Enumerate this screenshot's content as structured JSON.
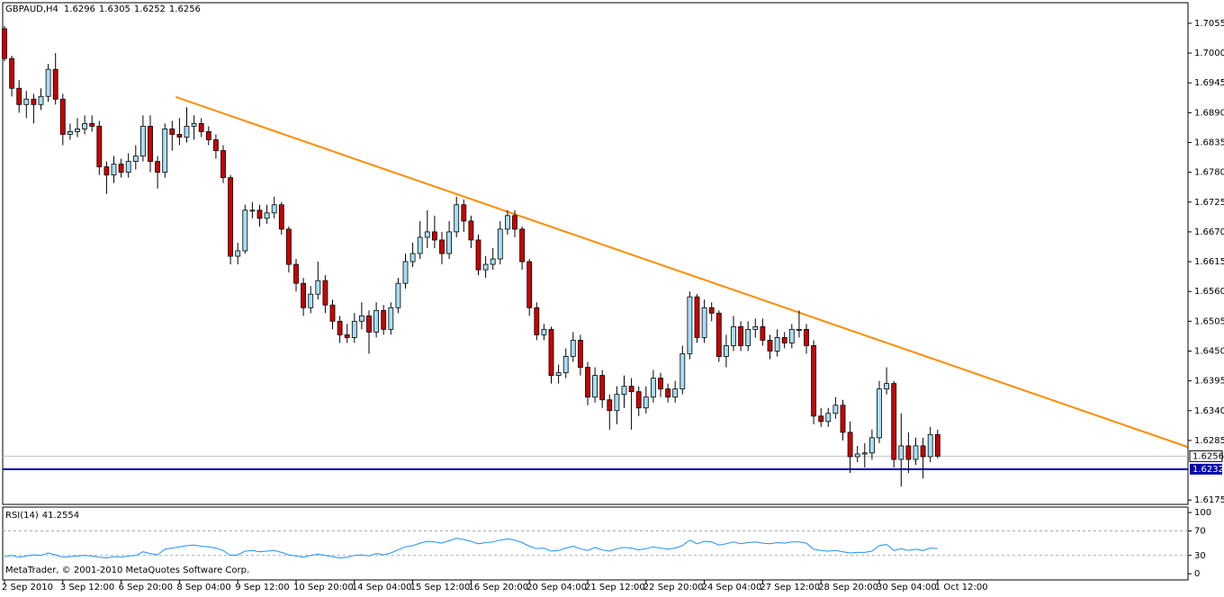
{
  "chart_data": {
    "type": "candlestick",
    "symbol": "GBPAUD,H4",
    "indicator_name": "RSI(14)",
    "copyright": "MetaTrader, © 2001-2010 MetaQuotes Software Corp.",
    "categories": [
      "2 Sep 2010",
      null,
      null,
      null,
      null,
      null,
      null,
      null,
      "3 Sep 12:00",
      null,
      null,
      null,
      null,
      null,
      null,
      null,
      "6 Sep 20:00",
      null,
      null,
      null,
      null,
      null,
      null,
      null,
      "8 Sep 04:00",
      null,
      null,
      null,
      null,
      null,
      null,
      null,
      "9 Sep 12:00",
      null,
      null,
      null,
      null,
      null,
      null,
      null,
      "10 Sep 20:00",
      null,
      null,
      null,
      null,
      null,
      null,
      null,
      "14 Sep 04:00",
      null,
      null,
      null,
      null,
      null,
      null,
      null,
      "15 Sep 12:00",
      null,
      null,
      null,
      null,
      null,
      null,
      null,
      "16 Sep 20:00",
      null,
      null,
      null,
      null,
      null,
      null,
      null,
      "20 Sep 04:00",
      null,
      null,
      null,
      null,
      null,
      null,
      null,
      "21 Sep 12:00",
      null,
      null,
      null,
      null,
      null,
      null,
      null,
      "22 Sep 20:00",
      null,
      null,
      null,
      null,
      null,
      null,
      null,
      "24 Sep 04:00",
      null,
      null,
      null,
      null,
      null,
      null,
      null,
      "27 Sep 12:00",
      null,
      null,
      null,
      null,
      null,
      null,
      null,
      "28 Sep 20:00",
      null,
      null,
      null,
      null,
      null,
      null,
      null,
      "30 Sep 04:00",
      null,
      null,
      null,
      null,
      null,
      null,
      null,
      "1 Oct 12:00"
    ],
    "ohlc": [
      [
        1.7045,
        1.705,
        1.6985,
        1.699
      ],
      [
        1.699,
        1.6995,
        1.692,
        1.6935
      ],
      [
        1.6935,
        1.695,
        1.689,
        1.6905
      ],
      [
        1.6905,
        1.693,
        1.688,
        1.6915
      ],
      [
        1.6915,
        1.6925,
        1.687,
        1.6905
      ],
      [
        1.6905,
        1.6935,
        1.6895,
        1.692
      ],
      [
        1.692,
        1.698,
        1.691,
        1.697
      ],
      [
        1.697,
        1.7,
        1.6905,
        1.6915
      ],
      [
        1.6915,
        1.6925,
        1.683,
        1.685
      ],
      [
        1.685,
        1.687,
        1.684,
        1.6855
      ],
      [
        1.6855,
        1.688,
        1.6845,
        1.686
      ],
      [
        1.686,
        1.6885,
        1.685,
        1.687
      ],
      [
        1.687,
        1.6885,
        1.6855,
        1.6865
      ],
      [
        1.6865,
        1.6875,
        1.6775,
        1.679
      ],
      [
        1.679,
        1.68,
        1.674,
        1.6775
      ],
      [
        1.6775,
        1.681,
        1.676,
        1.6795
      ],
      [
        1.6795,
        1.6805,
        1.677,
        1.678
      ],
      [
        1.678,
        1.6815,
        1.677,
        1.68
      ],
      [
        1.68,
        1.683,
        1.6785,
        1.681
      ],
      [
        1.681,
        1.6885,
        1.68,
        1.6865
      ],
      [
        1.6865,
        1.6885,
        1.678,
        1.68
      ],
      [
        1.68,
        1.681,
        1.675,
        1.678
      ],
      [
        1.678,
        1.687,
        1.677,
        1.686
      ],
      [
        1.686,
        1.6875,
        1.682,
        1.685
      ],
      [
        1.685,
        1.688,
        1.683,
        1.6845
      ],
      [
        1.6845,
        1.69,
        1.6835,
        1.6865
      ],
      [
        1.6865,
        1.6885,
        1.684,
        1.687
      ],
      [
        1.687,
        1.688,
        1.6845,
        1.6855
      ],
      [
        1.6855,
        1.6865,
        1.683,
        1.684
      ],
      [
        1.684,
        1.685,
        1.6805,
        1.682
      ],
      [
        1.682,
        1.683,
        1.676,
        1.677
      ],
      [
        1.677,
        1.6775,
        1.661,
        1.6625
      ],
      [
        1.6625,
        1.665,
        1.661,
        1.6635
      ],
      [
        1.6635,
        1.672,
        1.663,
        1.671
      ],
      [
        1.671,
        1.6725,
        1.6695,
        1.671
      ],
      [
        1.671,
        1.672,
        1.668,
        1.6695
      ],
      [
        1.6695,
        1.672,
        1.6685,
        1.6705
      ],
      [
        1.6705,
        1.6735,
        1.6695,
        1.672
      ],
      [
        1.672,
        1.6725,
        1.6665,
        1.6675
      ],
      [
        1.6675,
        1.668,
        1.6595,
        1.661
      ],
      [
        1.661,
        1.662,
        1.656,
        1.6575
      ],
      [
        1.6575,
        1.6585,
        1.6515,
        1.653
      ],
      [
        1.653,
        1.657,
        1.652,
        1.6555
      ],
      [
        1.6555,
        1.6615,
        1.6545,
        1.658
      ],
      [
        1.658,
        1.659,
        1.652,
        1.6535
      ],
      [
        1.6535,
        1.6545,
        1.649,
        1.6505
      ],
      [
        1.6505,
        1.6515,
        1.6465,
        1.648
      ],
      [
        1.648,
        1.65,
        1.6465,
        1.6475
      ],
      [
        1.6475,
        1.652,
        1.6465,
        1.6505
      ],
      [
        1.6505,
        1.654,
        1.649,
        1.6515
      ],
      [
        1.6515,
        1.6525,
        1.6445,
        1.6485
      ],
      [
        1.6485,
        1.654,
        1.6475,
        1.6525
      ],
      [
        1.6525,
        1.6535,
        1.648,
        1.649
      ],
      [
        1.649,
        1.654,
        1.648,
        1.653
      ],
      [
        1.653,
        1.6585,
        1.652,
        1.6575
      ],
      [
        1.6575,
        1.663,
        1.6565,
        1.6615
      ],
      [
        1.6615,
        1.665,
        1.6605,
        1.663
      ],
      [
        1.663,
        1.669,
        1.662,
        1.666
      ],
      [
        1.666,
        1.671,
        1.664,
        1.667
      ],
      [
        1.667,
        1.67,
        1.664,
        1.6655
      ],
      [
        1.6655,
        1.667,
        1.661,
        1.663
      ],
      [
        1.663,
        1.669,
        1.662,
        1.667
      ],
      [
        1.667,
        1.6735,
        1.666,
        1.672
      ],
      [
        1.672,
        1.673,
        1.667,
        1.669
      ],
      [
        1.669,
        1.67,
        1.664,
        1.6655
      ],
      [
        1.6655,
        1.6665,
        1.659,
        1.66
      ],
      [
        1.66,
        1.6625,
        1.6585,
        1.661
      ],
      [
        1.661,
        1.664,
        1.66,
        1.662
      ],
      [
        1.662,
        1.669,
        1.661,
        1.6675
      ],
      [
        1.6675,
        1.671,
        1.6665,
        1.67
      ],
      [
        1.67,
        1.671,
        1.666,
        1.6675
      ],
      [
        1.6675,
        1.668,
        1.66,
        1.6615
      ],
      [
        1.6615,
        1.662,
        1.6515,
        1.653
      ],
      [
        1.653,
        1.654,
        1.647,
        1.648
      ],
      [
        1.648,
        1.65,
        1.647,
        1.649
      ],
      [
        1.649,
        1.6495,
        1.639,
        1.6405
      ],
      [
        1.6405,
        1.6425,
        1.639,
        1.641
      ],
      [
        1.641,
        1.6455,
        1.64,
        1.644
      ],
      [
        1.644,
        1.6485,
        1.643,
        1.647
      ],
      [
        1.647,
        1.648,
        1.6405,
        1.642
      ],
      [
        1.642,
        1.643,
        1.635,
        1.6365
      ],
      [
        1.6365,
        1.642,
        1.6355,
        1.6405
      ],
      [
        1.6405,
        1.6415,
        1.6345,
        1.636
      ],
      [
        1.636,
        1.637,
        1.6305,
        1.634
      ],
      [
        1.634,
        1.6385,
        1.6315,
        1.637
      ],
      [
        1.637,
        1.6405,
        1.6345,
        1.6385
      ],
      [
        1.6385,
        1.64,
        1.6305,
        1.6375
      ],
      [
        1.6375,
        1.6385,
        1.633,
        1.6345
      ],
      [
        1.6345,
        1.6385,
        1.6335,
        1.6365
      ],
      [
        1.6365,
        1.6415,
        1.6355,
        1.64
      ],
      [
        1.64,
        1.641,
        1.6365,
        1.638
      ],
      [
        1.638,
        1.639,
        1.6355,
        1.6365
      ],
      [
        1.6365,
        1.6395,
        1.6355,
        1.638
      ],
      [
        1.638,
        1.646,
        1.637,
        1.6445
      ],
      [
        1.6445,
        1.656,
        1.6435,
        1.655
      ],
      [
        1.655,
        1.6555,
        1.6465,
        1.6475
      ],
      [
        1.6475,
        1.6545,
        1.6465,
        1.653
      ],
      [
        1.653,
        1.654,
        1.6505,
        1.652
      ],
      [
        1.652,
        1.6525,
        1.643,
        1.644
      ],
      [
        1.644,
        1.648,
        1.642,
        1.646
      ],
      [
        1.646,
        1.6515,
        1.645,
        1.6495
      ],
      [
        1.6495,
        1.6505,
        1.645,
        1.646
      ],
      [
        1.646,
        1.6505,
        1.645,
        1.649
      ],
      [
        1.649,
        1.651,
        1.6475,
        1.6495
      ],
      [
        1.6495,
        1.651,
        1.646,
        1.647
      ],
      [
        1.647,
        1.648,
        1.6435,
        1.645
      ],
      [
        1.645,
        1.649,
        1.644,
        1.6475
      ],
      [
        1.6475,
        1.6485,
        1.6455,
        1.6465
      ],
      [
        1.6465,
        1.65,
        1.6455,
        1.649
      ],
      [
        1.649,
        1.6525,
        1.6475,
        1.649
      ],
      [
        1.649,
        1.65,
        1.6445,
        1.646
      ],
      [
        1.646,
        1.647,
        1.6315,
        1.633
      ],
      [
        1.633,
        1.6345,
        1.631,
        1.632
      ],
      [
        1.632,
        1.6345,
        1.631,
        1.6335
      ],
      [
        1.6335,
        1.6365,
        1.6325,
        1.635
      ],
      [
        1.635,
        1.636,
        1.6285,
        1.63
      ],
      [
        1.63,
        1.632,
        1.6225,
        1.6255
      ],
      [
        1.6255,
        1.6275,
        1.6245,
        1.626
      ],
      [
        1.626,
        1.628,
        1.6235,
        1.6262
      ],
      [
        1.6262,
        1.6305,
        1.625,
        1.629
      ],
      [
        1.629,
        1.6395,
        1.628,
        1.638
      ],
      [
        1.638,
        1.642,
        1.637,
        1.639
      ],
      [
        1.639,
        1.6395,
        1.6235,
        1.625
      ],
      [
        1.625,
        1.6335,
        1.62,
        1.6275
      ],
      [
        1.6275,
        1.63,
        1.6225,
        1.625
      ],
      [
        1.625,
        1.629,
        1.624,
        1.6275
      ],
      [
        1.6275,
        1.629,
        1.6215,
        1.6255
      ],
      [
        1.6255,
        1.631,
        1.6245,
        1.6296
      ],
      [
        1.6296,
        1.6305,
        1.6252,
        1.6256
      ]
    ],
    "bull_color": "#a8dff5",
    "bear_color": "#cc0000",
    "ylim": [
      1.6167,
      1.7093
    ],
    "yticks": [
      1.7055,
      {
        "value": 1.7,
        "label": "1.7000"
      },
      1.6945,
      {
        "value": 1.689,
        "label": "1.6890"
      },
      1.6835,
      {
        "value": 1.678,
        "label": "1.6780"
      },
      1.6725,
      {
        "value": 1.667,
        "label": "1.6670"
      },
      1.6615,
      {
        "value": 1.656,
        "label": "1.6560"
      },
      1.6505,
      {
        "value": 1.645,
        "label": "1.6450"
      },
      1.6395,
      {
        "value": 1.634,
        "label": "1.6340"
      },
      1.6285,
      1.6175
    ],
    "support_level": 1.6232,
    "support_color": "#0000aa",
    "trendline": {
      "x": [
        23.5,
        162.3
      ],
      "y": [
        1.6919,
        1.6273
      ],
      "color": "#ff8c00"
    },
    "rsi": {
      "color": "#1e90ff",
      "ylim": [
        -10,
        106
      ],
      "yticks": [
        100,
        70,
        30,
        0
      ],
      "levels": [
        70,
        30
      ],
      "values": [
        28,
        30,
        27,
        29,
        31,
        30,
        34,
        31,
        27,
        28,
        29,
        30,
        29,
        27,
        26,
        28,
        27,
        29,
        30,
        36,
        33,
        31,
        40,
        42,
        44,
        46,
        47,
        45,
        44,
        42,
        38,
        30,
        31,
        37,
        38,
        36,
        37,
        38,
        35,
        31,
        29,
        27,
        30,
        32,
        30,
        28,
        26,
        27,
        30,
        31,
        29,
        33,
        31,
        34,
        39,
        44,
        46,
        50,
        53,
        52,
        50,
        54,
        58,
        56,
        53,
        49,
        51,
        52,
        55,
        57,
        55,
        51,
        45,
        41,
        42,
        37,
        38,
        42,
        45,
        41,
        38,
        43,
        39,
        37,
        41,
        43,
        42,
        39,
        41,
        44,
        42,
        40,
        42,
        46,
        55,
        49,
        53,
        52,
        47,
        49,
        52,
        49,
        51,
        52,
        50,
        49,
        51,
        50,
        52,
        52,
        50,
        40,
        38,
        37,
        38,
        36,
        34,
        35,
        35,
        37,
        46,
        48,
        38,
        41,
        38,
        40,
        38,
        42,
        41.2554
      ]
    }
  }
}
